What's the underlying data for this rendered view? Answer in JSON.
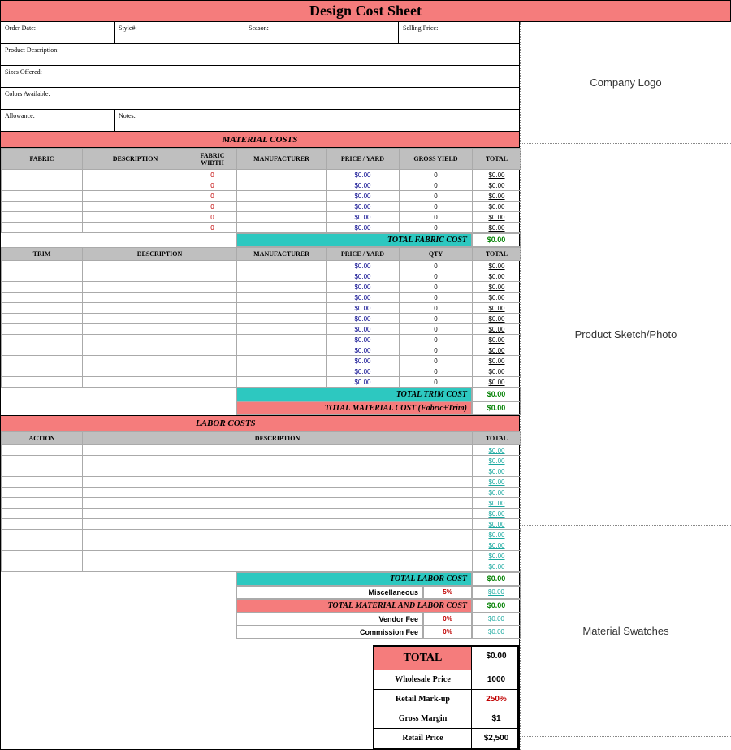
{
  "title": "Design Cost Sheet",
  "colors": {
    "pink": "#f57c7c",
    "teal": "#2dc8c0",
    "gray": "#bfbfbf",
    "red_text": "#c00000",
    "green_text": "#008000",
    "teal_text": "#1ba9a0",
    "link_blue": "#00008b"
  },
  "right_panels": {
    "logo": "Company Logo",
    "sketch": "Product Sketch/Photo",
    "swatches": "Material Swatches"
  },
  "info": {
    "order_date": "Order Date:",
    "style_no": "Style#:",
    "season": "Season:",
    "selling_price": "Selling Price:",
    "product_desc": "Product Description:",
    "sizes": "Sizes Offered:",
    "colors_avail": "Colors Available:",
    "allowance": "Allowance:",
    "notes": "Notes:"
  },
  "material": {
    "header": "MATERIAL COSTS",
    "fabric_cols": [
      "FABRIC",
      "DESCRIPTION",
      "FABRIC WIDTH",
      "MANUFACTURER",
      "PRICE / YARD",
      "GROSS YIELD",
      "TOTAL"
    ],
    "fabric_rows": [
      {
        "width": "0",
        "price": "$0.00",
        "yield": "0",
        "total": "$0.00"
      },
      {
        "width": "0",
        "price": "$0.00",
        "yield": "0",
        "total": "$0.00"
      },
      {
        "width": "0",
        "price": "$0.00",
        "yield": "0",
        "total": "$0.00"
      },
      {
        "width": "0",
        "price": "$0.00",
        "yield": "0",
        "total": "$0.00"
      },
      {
        "width": "0",
        "price": "$0.00",
        "yield": "0",
        "total": "$0.00"
      },
      {
        "width": "0",
        "price": "$0.00",
        "yield": "0",
        "total": "$0.00"
      }
    ],
    "total_fabric_label": "TOTAL FABRIC COST",
    "total_fabric_val": "$0.00",
    "trim_cols": [
      "TRIM",
      "DESCRIPTION",
      "MANUFACTURER",
      "PRICE / YARD",
      "QTY",
      "TOTAL"
    ],
    "trim_rows": [
      {
        "price": "$0.00",
        "qty": "0",
        "total": "$0.00"
      },
      {
        "price": "$0.00",
        "qty": "0",
        "total": "$0.00"
      },
      {
        "price": "$0.00",
        "qty": "0",
        "total": "$0.00"
      },
      {
        "price": "$0.00",
        "qty": "0",
        "total": "$0.00"
      },
      {
        "price": "$0.00",
        "qty": "0",
        "total": "$0.00"
      },
      {
        "price": "$0.00",
        "qty": "0",
        "total": "$0.00"
      },
      {
        "price": "$0.00",
        "qty": "0",
        "total": "$0.00"
      },
      {
        "price": "$0.00",
        "qty": "0",
        "total": "$0.00"
      },
      {
        "price": "$0.00",
        "qty": "0",
        "total": "$0.00"
      },
      {
        "price": "$0.00",
        "qty": "0",
        "total": "$0.00"
      },
      {
        "price": "$0.00",
        "qty": "0",
        "total": "$0.00"
      },
      {
        "price": "$0.00",
        "qty": "0",
        "total": "$0.00"
      }
    ],
    "total_trim_label": "TOTAL TRIM COST",
    "total_trim_val": "$0.00",
    "total_material_label": "TOTAL MATERIAL COST (Fabric+Trim)",
    "total_material_val": "$0.00"
  },
  "labor": {
    "header": "LABOR COSTS",
    "cols": [
      "ACTION",
      "DESCRIPTION",
      "TOTAL"
    ],
    "rows": [
      "$0.00",
      "$0.00",
      "$0.00",
      "$0.00",
      "$0.00",
      "$0.00",
      "$0.00",
      "$0.00",
      "$0.00",
      "$0.00",
      "$0.00",
      "$0.00"
    ],
    "total_labor_label": "TOTAL LABOR COST",
    "total_labor_val": "$0.00",
    "misc_label": "Miscellaneous",
    "misc_pct": "5%",
    "misc_val": "$0.00",
    "total_ml_label": "TOTAL MATERIAL AND LABOR COST",
    "total_ml_val": "$0.00",
    "vendor_label": "Vendor Fee",
    "vendor_pct": "0%",
    "vendor_val": "$0.00",
    "comm_label": "Commission Fee",
    "comm_pct": "0%",
    "comm_val": "$0.00"
  },
  "summary": {
    "total_label": "TOTAL",
    "total_val": "$0.00",
    "wholesale_label": "Wholesale Price",
    "wholesale_val": "1000",
    "markup_label": "Retail Mark-up",
    "markup_val": "250%",
    "margin_label": "Gross Margin",
    "margin_val": "$1",
    "retail_label": "Retail Price",
    "retail_val": "$2,500"
  }
}
